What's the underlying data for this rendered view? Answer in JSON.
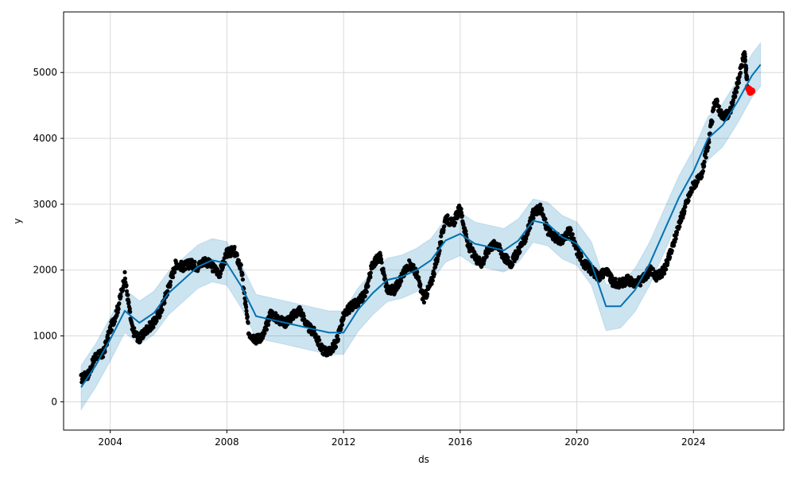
{
  "chart_data": {
    "type": "line",
    "title": "",
    "xlabel": "ds",
    "ylabel": "y",
    "xlim": [
      2002.4,
      2027.1
    ],
    "ylim": [
      -430,
      5920
    ],
    "x_ticks": [
      2004,
      2008,
      2012,
      2016,
      2020,
      2024
    ],
    "x_tick_labels": [
      "2004",
      "2008",
      "2012",
      "2016",
      "2020",
      "2024"
    ],
    "y_ticks": [
      0,
      1000,
      2000,
      3000,
      4000,
      5000
    ],
    "y_tick_labels": [
      "0",
      "1000",
      "2000",
      "3000",
      "4000",
      "5000"
    ],
    "grid": true,
    "colors": {
      "forecast_line": "#0072B2",
      "uncertainty_band": "#0072B2",
      "observed_points": "#000000",
      "highlighted_points": "#ff0000",
      "grid": "#d9d9d9"
    },
    "series": [
      {
        "role": "forecast",
        "x": [
          2003.0,
          2003.5,
          2004.0,
          2004.5,
          2005.0,
          2005.5,
          2006.0,
          2006.5,
          2007.0,
          2007.5,
          2008.0,
          2008.5,
          2009.0,
          2009.5,
          2010.0,
          2010.5,
          2011.0,
          2011.5,
          2012.0,
          2012.5,
          2013.0,
          2013.5,
          2014.0,
          2014.5,
          2015.0,
          2015.5,
          2016.0,
          2016.5,
          2017.0,
          2017.5,
          2018.0,
          2018.5,
          2019.0,
          2019.5,
          2020.0,
          2020.5,
          2021.0,
          2021.5,
          2022.0,
          2022.5,
          2023.0,
          2023.5,
          2024.0,
          2024.5,
          2025.0,
          2025.5,
          2026.0,
          2026.3
        ],
        "y": [
          220,
          550,
          950,
          1380,
          1200,
          1350,
          1650,
          1850,
          2050,
          2150,
          2100,
          1750,
          1300,
          1250,
          1200,
          1150,
          1100,
          1050,
          1050,
          1400,
          1650,
          1850,
          1900,
          2000,
          2150,
          2450,
          2550,
          2400,
          2350,
          2300,
          2450,
          2750,
          2700,
          2500,
          2400,
          2100,
          1450,
          1450,
          1700,
          2100,
          2600,
          3100,
          3500,
          4000,
          4200,
          4550,
          4950,
          5120
        ]
      },
      {
        "role": "uncertainty-upper",
        "x": [
          2003.0,
          2003.5,
          2004.0,
          2004.5,
          2005.0,
          2005.5,
          2006.0,
          2006.5,
          2007.0,
          2007.5,
          2008.0,
          2008.5,
          2009.0,
          2009.5,
          2010.0,
          2010.5,
          2011.0,
          2011.5,
          2012.0,
          2012.5,
          2013.0,
          2013.5,
          2014.0,
          2014.5,
          2015.0,
          2015.5,
          2016.0,
          2016.5,
          2017.0,
          2017.5,
          2018.0,
          2018.5,
          2019.0,
          2019.5,
          2020.0,
          2020.5,
          2021.0,
          2021.5,
          2022.0,
          2022.5,
          2023.0,
          2023.5,
          2024.0,
          2024.5,
          2025.0,
          2025.5,
          2026.0,
          2026.3
        ],
        "y": [
          550,
          880,
          1280,
          1710,
          1530,
          1680,
          1980,
          2180,
          2380,
          2480,
          2430,
          2080,
          1630,
          1580,
          1530,
          1480,
          1430,
          1380,
          1380,
          1730,
          1980,
          2180,
          2230,
          2330,
          2480,
          2780,
          2880,
          2730,
          2680,
          2630,
          2780,
          3080,
          3030,
          2830,
          2730,
          2430,
          1780,
          1780,
          2030,
          2430,
          2930,
          3430,
          3830,
          4330,
          4530,
          4880,
          5280,
          5450
        ]
      },
      {
        "role": "uncertainty-lower",
        "x": [
          2003.0,
          2003.5,
          2004.0,
          2004.5,
          2005.0,
          2005.5,
          2006.0,
          2006.5,
          2007.0,
          2007.5,
          2008.0,
          2008.5,
          2009.0,
          2009.5,
          2010.0,
          2010.5,
          2011.0,
          2011.5,
          2012.0,
          2012.5,
          2013.0,
          2013.5,
          2014.0,
          2014.5,
          2015.0,
          2015.5,
          2016.0,
          2016.5,
          2017.0,
          2017.5,
          2018.0,
          2018.5,
          2019.0,
          2019.5,
          2020.0,
          2020.5,
          2021.0,
          2021.5,
          2022.0,
          2022.5,
          2023.0,
          2023.5,
          2024.0,
          2024.5,
          2025.0,
          2025.5,
          2026.0,
          2026.3
        ],
        "y": [
          -120,
          220,
          620,
          1050,
          870,
          1020,
          1320,
          1520,
          1720,
          1820,
          1770,
          1420,
          970,
          920,
          870,
          820,
          770,
          720,
          720,
          1070,
          1320,
          1520,
          1570,
          1670,
          1820,
          2120,
          2220,
          2070,
          2020,
          1970,
          2120,
          2420,
          2370,
          2170,
          2070,
          1770,
          1080,
          1120,
          1370,
          1770,
          2270,
          2770,
          3170,
          3670,
          3870,
          4220,
          4620,
          4790
        ]
      },
      {
        "role": "observed",
        "x": [
          2003.0,
          2003.25,
          2003.5,
          2003.75,
          2004.0,
          2004.25,
          2004.5,
          2004.75,
          2005.0,
          2005.25,
          2005.5,
          2005.75,
          2006.0,
          2006.25,
          2006.5,
          2006.75,
          2007.0,
          2007.25,
          2007.5,
          2007.75,
          2008.0,
          2008.25,
          2008.5,
          2008.75,
          2009.0,
          2009.25,
          2009.5,
          2009.75,
          2010.0,
          2010.25,
          2010.5,
          2010.75,
          2011.0,
          2011.25,
          2011.5,
          2011.75,
          2012.0,
          2012.25,
          2012.5,
          2012.75,
          2013.0,
          2013.25,
          2013.5,
          2013.75,
          2014.0,
          2014.25,
          2014.5,
          2014.75,
          2015.0,
          2015.25,
          2015.5,
          2015.75,
          2016.0,
          2016.25,
          2016.5,
          2016.75,
          2017.0,
          2017.25,
          2017.5,
          2017.75,
          2018.0,
          2018.25,
          2018.5,
          2018.75,
          2019.0,
          2019.25,
          2019.5,
          2019.75,
          2020.0,
          2020.25,
          2020.5,
          2020.75,
          2021.0,
          2021.25,
          2021.5,
          2021.75,
          2022.0,
          2022.25,
          2022.5,
          2022.75,
          2023.0,
          2023.25,
          2023.5,
          2023.75,
          2024.0,
          2024.25,
          2024.5,
          2024.75,
          2025.0,
          2025.25,
          2025.5,
          2025.75,
          2025.85
        ],
        "y": [
          350,
          420,
          700,
          720,
          1100,
          1400,
          1900,
          1100,
          950,
          1100,
          1200,
          1400,
          1750,
          2100,
          2050,
          2100,
          2050,
          2150,
          2050,
          1950,
          2250,
          2300,
          2000,
          1050,
          950,
          1000,
          1350,
          1250,
          1200,
          1300,
          1400,
          1150,
          1050,
          800,
          750,
          900,
          1300,
          1450,
          1500,
          1650,
          2100,
          2200,
          1700,
          1700,
          1900,
          2100,
          1950,
          1550,
          1800,
          2250,
          2800,
          2700,
          2950,
          2400,
          2200,
          2100,
          2350,
          2400,
          2200,
          2100,
          2300,
          2500,
          2850,
          2950,
          2600,
          2500,
          2450,
          2600,
          2300,
          2100,
          2000,
          1900,
          2000,
          1800,
          1800,
          1850,
          1800,
          1850,
          2000,
          1900,
          2000,
          2300,
          2700,
          3000,
          3300,
          3400,
          3900,
          4600,
          4300,
          4400,
          4800,
          5300,
          4800
        ]
      },
      {
        "role": "highlighted",
        "x": [
          2025.9,
          2025.95,
          2026.0
        ],
        "y": [
          4750,
          4700,
          4720
        ]
      }
    ]
  }
}
